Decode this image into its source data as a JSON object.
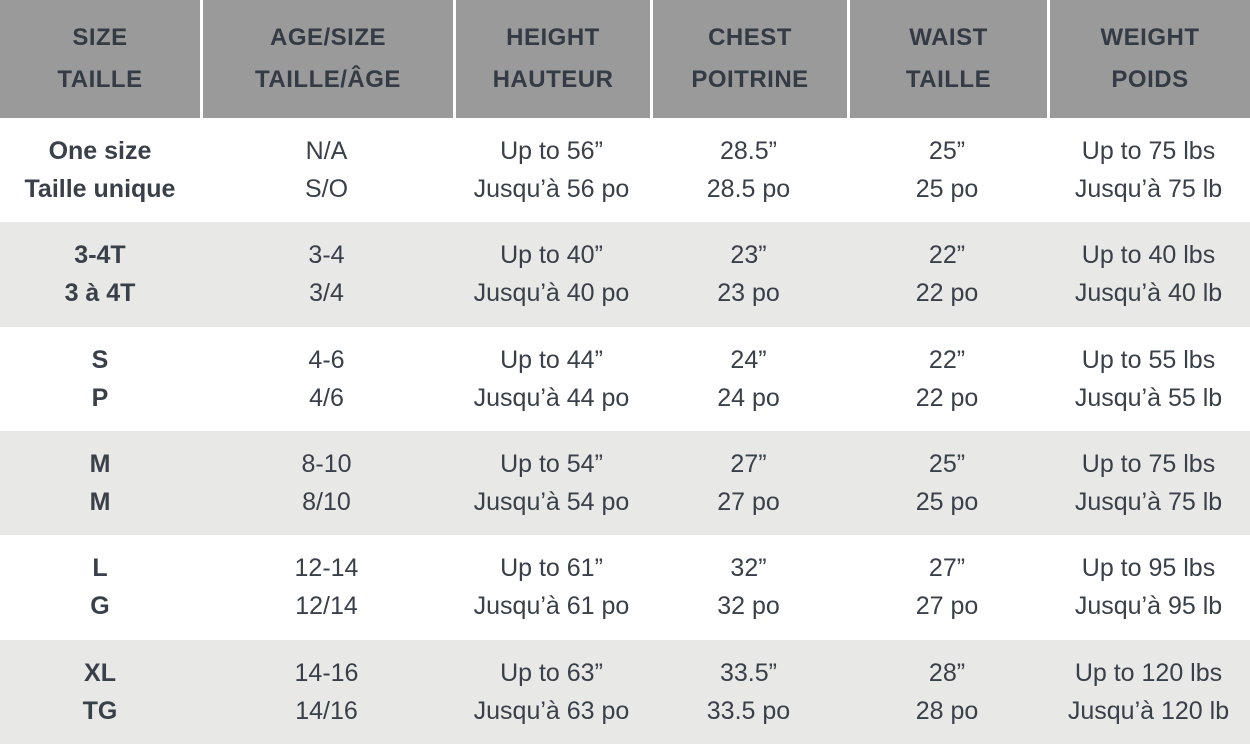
{
  "table": {
    "name": "size-chart",
    "columns": [
      {
        "en": "SIZE",
        "fr": "TAILLE"
      },
      {
        "en": "AGE/SIZE",
        "fr": "TAILLE/ÂGE"
      },
      {
        "en": "HEIGHT",
        "fr": "HAUTEUR"
      },
      {
        "en": "CHEST",
        "fr": "POITRINE"
      },
      {
        "en": "WAIST",
        "fr": "TAILLE"
      },
      {
        "en": "WEIGHT",
        "fr": "POIDS"
      }
    ],
    "rows": [
      {
        "cells": [
          {
            "en": "One size",
            "fr": "Taille unique"
          },
          {
            "en": "N/A",
            "fr": "S/O"
          },
          {
            "en": "Up to 56”",
            "fr": "Jusqu’à 56 po"
          },
          {
            "en": "28.5”",
            "fr": "28.5 po"
          },
          {
            "en": "25”",
            "fr": "25 po"
          },
          {
            "en": "Up to 75 lbs",
            "fr": "Jusqu’à 75 lb"
          }
        ]
      },
      {
        "cells": [
          {
            "en": "3-4T",
            "fr": "3 à 4T"
          },
          {
            "en": "3-4",
            "fr": "3/4"
          },
          {
            "en": "Up to 40”",
            "fr": "Jusqu’à 40 po"
          },
          {
            "en": "23”",
            "fr": "23 po"
          },
          {
            "en": "22”",
            "fr": "22 po"
          },
          {
            "en": "Up to 40 lbs",
            "fr": "Jusqu’à 40 lb"
          }
        ]
      },
      {
        "cells": [
          {
            "en": "S",
            "fr": "P"
          },
          {
            "en": "4-6",
            "fr": "4/6"
          },
          {
            "en": "Up to 44”",
            "fr": "Jusqu’à 44 po"
          },
          {
            "en": "24”",
            "fr": "24 po"
          },
          {
            "en": "22”",
            "fr": "22 po"
          },
          {
            "en": "Up to 55 lbs",
            "fr": "Jusqu’à 55 lb"
          }
        ]
      },
      {
        "cells": [
          {
            "en": "M",
            "fr": "M"
          },
          {
            "en": "8-10",
            "fr": "8/10"
          },
          {
            "en": "Up to 54”",
            "fr": "Jusqu’à 54 po"
          },
          {
            "en": "27”",
            "fr": "27 po"
          },
          {
            "en": "25”",
            "fr": "25 po"
          },
          {
            "en": "Up to 75 lbs",
            "fr": "Jusqu’à 75 lb"
          }
        ]
      },
      {
        "cells": [
          {
            "en": "L",
            "fr": "G"
          },
          {
            "en": "12-14",
            "fr": "12/14"
          },
          {
            "en": "Up to 61”",
            "fr": "Jusqu’à 61 po"
          },
          {
            "en": "32”",
            "fr": "32 po"
          },
          {
            "en": "27”",
            "fr": "27 po"
          },
          {
            "en": "Up to 95 lbs",
            "fr": "Jusqu’à 95 lb"
          }
        ]
      },
      {
        "cells": [
          {
            "en": "XL",
            "fr": "TG"
          },
          {
            "en": "14-16",
            "fr": "14/16"
          },
          {
            "en": "Up to 63”",
            "fr": "Jusqu’à 63 po"
          },
          {
            "en": "33.5”",
            "fr": "33.5 po"
          },
          {
            "en": "28”",
            "fr": "28 po"
          },
          {
            "en": "Up to 120 lbs",
            "fr": "Jusqu’à 120 lb"
          }
        ]
      }
    ],
    "colors": {
      "header_bg": "#9a9a9a",
      "header_text": "#343b45",
      "alt_row_bg": "#e8e8e6",
      "row_bg": "#ffffff",
      "cell_text": "#3a4049"
    }
  }
}
